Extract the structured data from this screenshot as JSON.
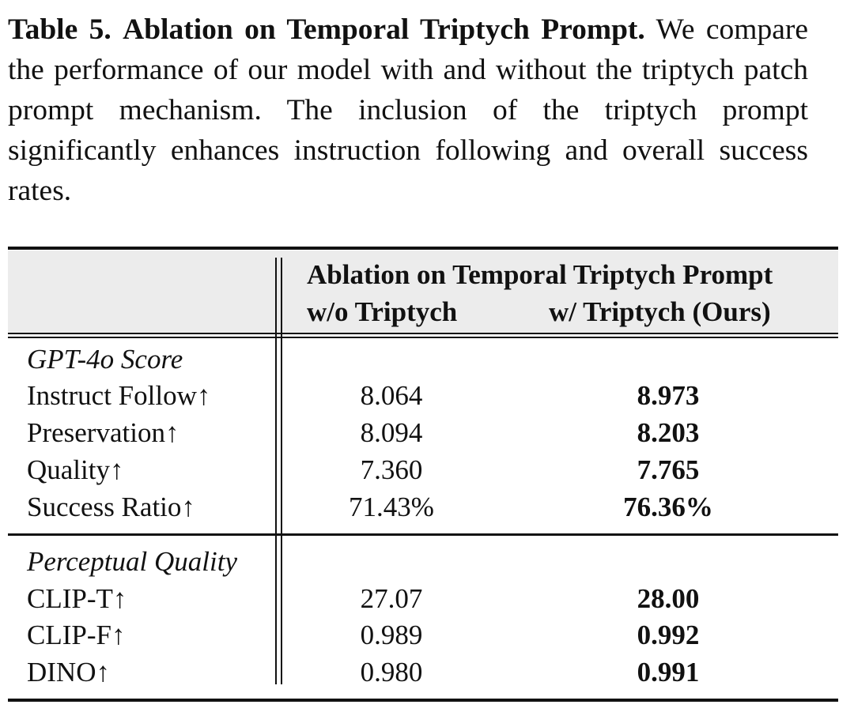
{
  "caption": {
    "label": "Table 5.",
    "title": "Ablation on Temporal Triptych Prompt.",
    "text": "We compare the performance of our model with and without the triptych patch prompt mechanism. The inclusion of the triptych prompt significantly enhances instruction following and overall success rates."
  },
  "table": {
    "group_header": "Ablation on Temporal Triptych Prompt",
    "columns": [
      "w/o Triptych",
      "w/ Triptych (Ours)"
    ],
    "sections": [
      {
        "title": "GPT-4o Score",
        "rows": [
          {
            "label": "Instruct Follow↑",
            "values": [
              "8.064",
              "8.973"
            ]
          },
          {
            "label": "Preservation↑",
            "values": [
              "8.094",
              "8.203"
            ]
          },
          {
            "label": "Quality↑",
            "values": [
              "7.360",
              "7.765"
            ]
          },
          {
            "label": "Success Ratio↑",
            "values": [
              "71.43%",
              "76.36%"
            ]
          }
        ]
      },
      {
        "title": "Perceptual Quality",
        "rows": [
          {
            "label": "CLIP-T↑",
            "values": [
              "27.07",
              "28.00"
            ]
          },
          {
            "label": "CLIP-F↑",
            "values": [
              "0.989",
              "0.992"
            ]
          },
          {
            "label": "DINO↑",
            "values": [
              "0.980",
              "0.991"
            ]
          }
        ]
      }
    ]
  }
}
